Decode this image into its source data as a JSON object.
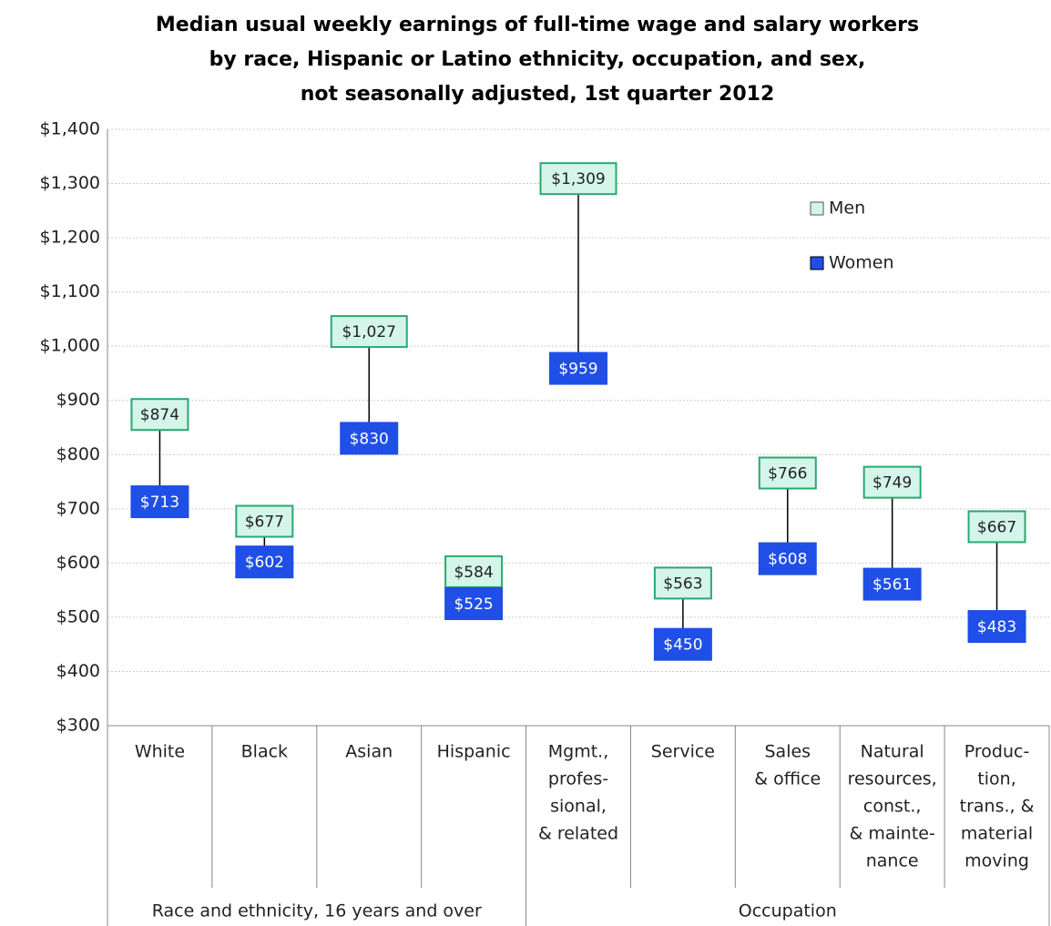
{
  "chart_data": {
    "type": "dot-range",
    "title": [
      "Median usual weekly earnings of full-time wage and salary workers",
      "by race, Hispanic or Latino ethnicity, occupation, and sex,",
      "not seasonally adjusted, 1st quarter 2012"
    ],
    "categories": [
      [
        "White"
      ],
      [
        "Black"
      ],
      [
        "Asian"
      ],
      [
        "Hispanic"
      ],
      [
        "Mgmt.,",
        "profes-",
        "sional,",
        "& related"
      ],
      [
        "Service"
      ],
      [
        "Sales",
        "& office"
      ],
      [
        "Natural",
        "resources,",
        "const.,",
        "& mainte-",
        "nance"
      ],
      [
        "Produc-",
        "tion,",
        "trans., &",
        "material",
        "moving"
      ]
    ],
    "groups": [
      {
        "label": "Race and ethnicity, 16 years and over",
        "size": 4
      },
      {
        "label": "Occupation",
        "size": 5
      }
    ],
    "series": [
      {
        "name": "Men",
        "color": "#d4f5ea",
        "border": "#2aa870",
        "values": [
          874,
          677,
          1027,
          584,
          1309,
          563,
          766,
          749,
          667
        ],
        "value_labels": [
          "$874",
          "$677",
          "$1,027",
          "$584",
          "$1,309",
          "$563",
          "$766",
          "$749",
          "$667"
        ]
      },
      {
        "name": "Women",
        "color": "#1f4fe6",
        "border": "#1f4fe6",
        "values": [
          713,
          602,
          830,
          525,
          959,
          450,
          608,
          561,
          483
        ],
        "value_labels": [
          "$713",
          "$602",
          "$830",
          "$525",
          "$959",
          "$450",
          "$608",
          "$561",
          "$483"
        ]
      }
    ],
    "ylim": [
      300,
      1400
    ],
    "yticks": [
      {
        "value": 300,
        "label": "$300"
      },
      {
        "value": 400,
        "label": "$400"
      },
      {
        "value": 500,
        "label": "$500"
      },
      {
        "value": 600,
        "label": "$600"
      },
      {
        "value": 700,
        "label": "$700"
      },
      {
        "value": 800,
        "label": "$800"
      },
      {
        "value": 900,
        "label": "$900"
      },
      {
        "value": 1000,
        "label": "$1,000"
      },
      {
        "value": 1100,
        "label": "$1,100"
      },
      {
        "value": 1200,
        "label": "$1,200"
      },
      {
        "value": 1300,
        "label": "$1,300"
      },
      {
        "value": 1400,
        "label": "$1,400"
      }
    ],
    "grid": true,
    "legend": "upper right"
  }
}
